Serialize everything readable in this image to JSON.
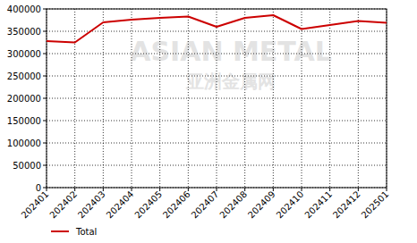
{
  "chart_data": {
    "type": "line",
    "categories": [
      "202401",
      "202402",
      "202403",
      "202404",
      "202405",
      "202406",
      "202407",
      "202408",
      "202409",
      "202410",
      "202411",
      "202412",
      "202501"
    ],
    "series": [
      {
        "name": "Total",
        "color": "#cc0000",
        "values": [
          328000,
          325000,
          370000,
          376000,
          380000,
          383000,
          360000,
          380000,
          386000,
          355000,
          364000,
          373000,
          369000
        ]
      }
    ],
    "ylim": [
      0,
      400000
    ],
    "yticks": [
      0,
      50000,
      100000,
      150000,
      200000,
      250000,
      300000,
      350000,
      400000
    ],
    "grid": true,
    "legend": "bottom",
    "annotations": [
      "ASIAN METAL",
      "亚洲金属网"
    ]
  }
}
